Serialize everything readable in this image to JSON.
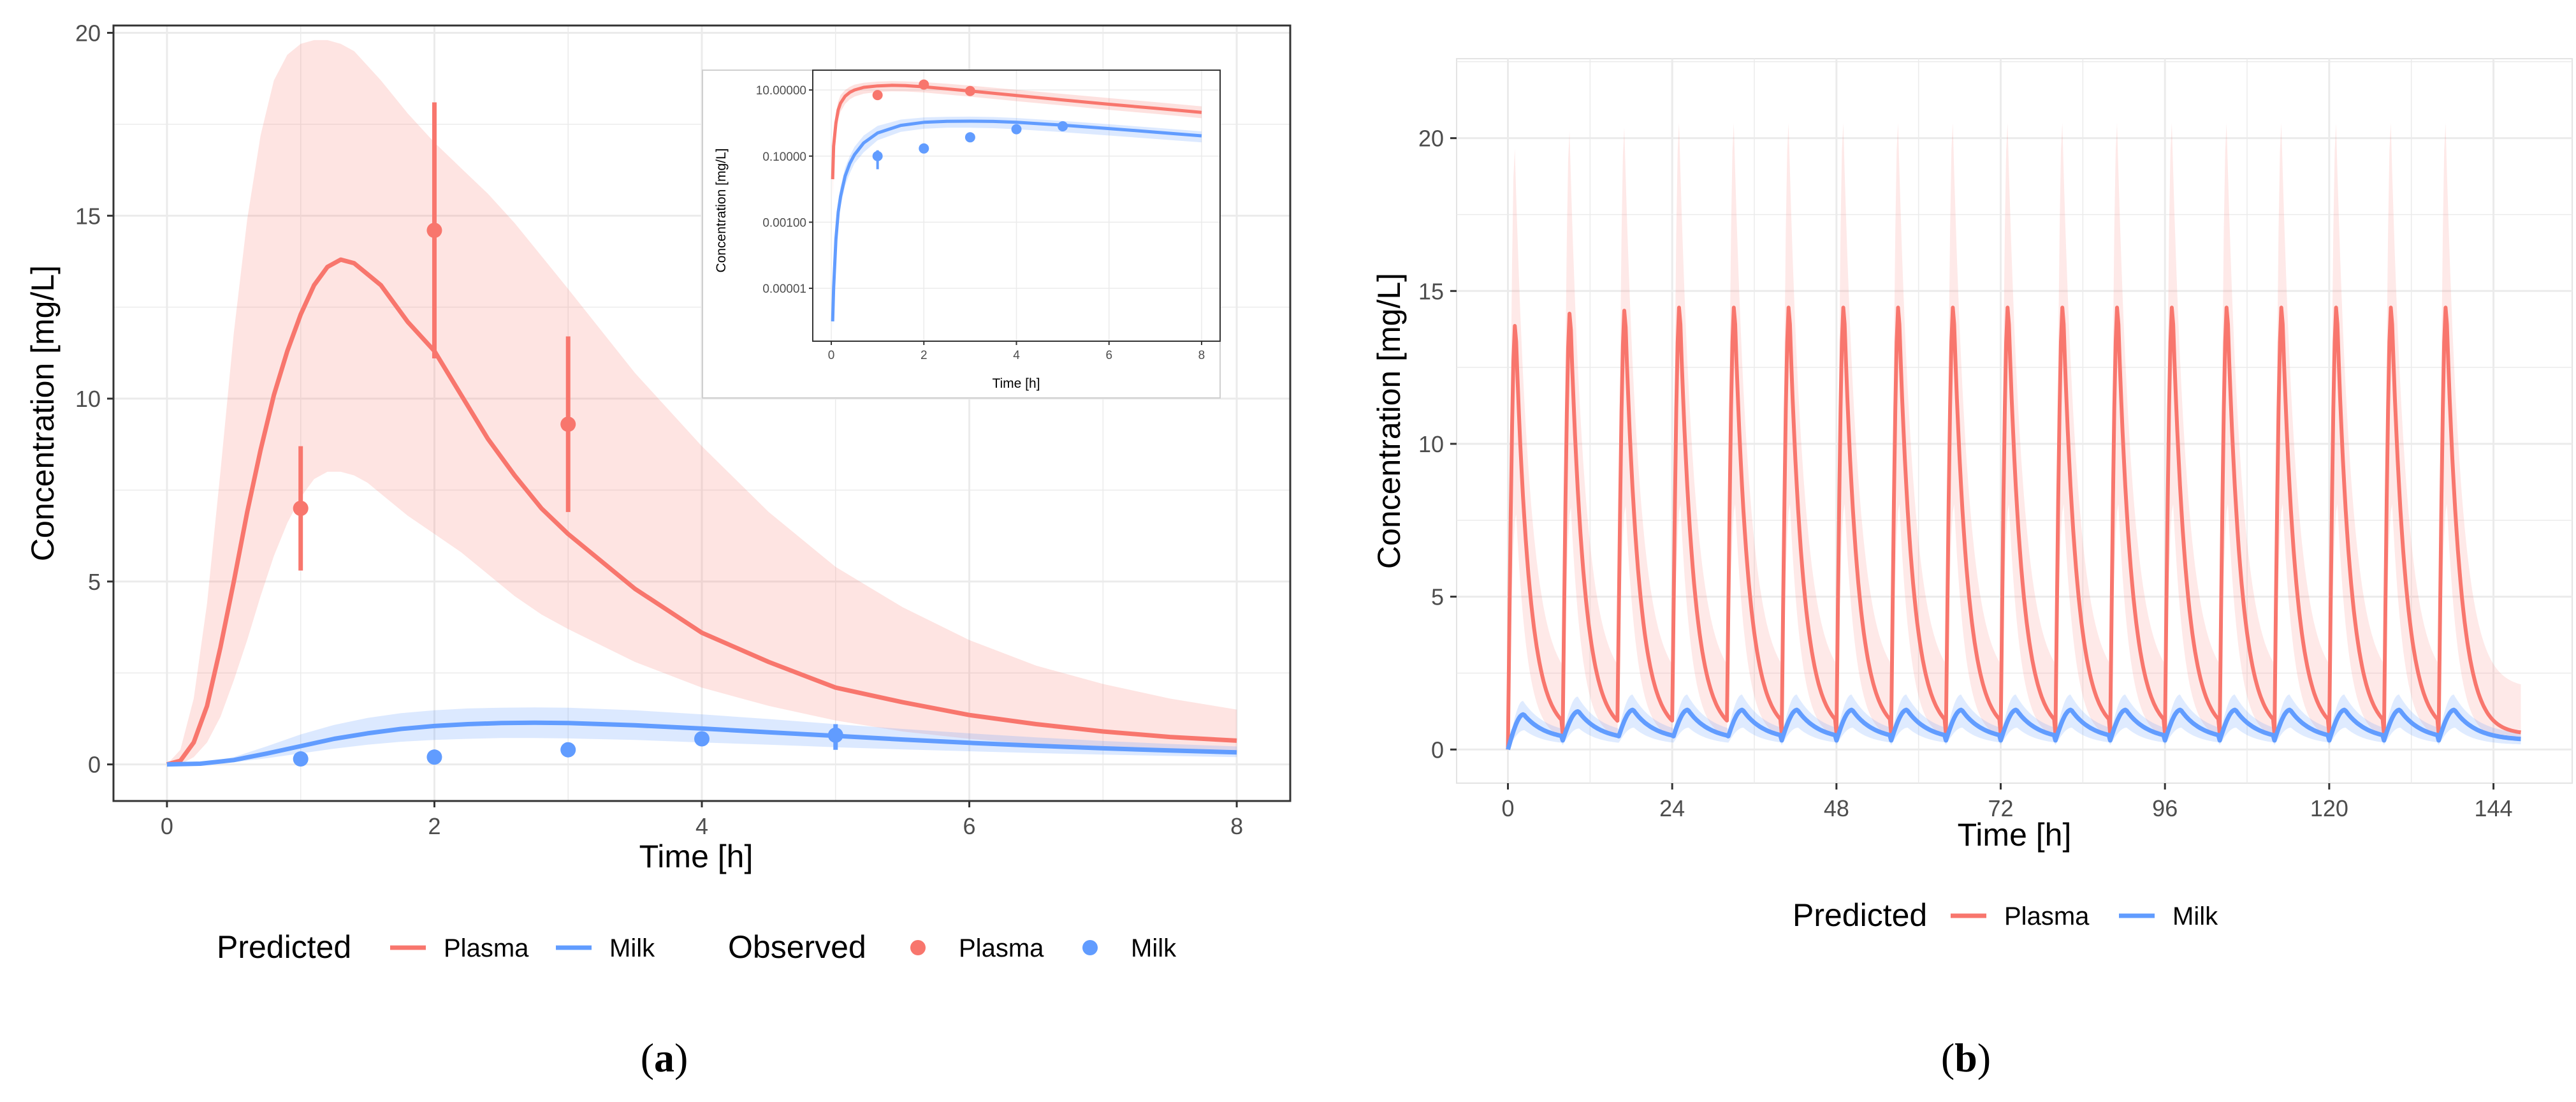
{
  "colors": {
    "plasma": "#F8766D",
    "milk": "#619CFF",
    "plasma_band": "#F8766D",
    "milk_band": "#619CFF",
    "grid": "#EBEBEB",
    "panel_border": "#333333"
  },
  "chart_data": [
    {
      "id": "a",
      "type": "line",
      "caption_open": "(",
      "caption_letter": "a",
      "caption_close": ")",
      "xlabel": "Time [h]",
      "ylabel": "Concentration [mg/L]",
      "xlim": [
        -0.4,
        8.4
      ],
      "ylim": [
        -1,
        20.2
      ],
      "x_ticks": [
        0,
        2,
        4,
        6,
        8
      ],
      "x_tick_labels": [
        "0",
        "2",
        "4",
        "6",
        "8"
      ],
      "y_ticks": [
        0,
        5,
        10,
        15,
        20
      ],
      "y_tick_labels": [
        "0",
        "5",
        "10",
        "15",
        "20"
      ],
      "grid": true,
      "series": [
        {
          "name": "Plasma",
          "kind": "predicted",
          "x": [
            0,
            0.1,
            0.2,
            0.3,
            0.4,
            0.5,
            0.6,
            0.7,
            0.8,
            0.9,
            1.0,
            1.1,
            1.2,
            1.3,
            1.4,
            1.5,
            1.6,
            1.8,
            2.0,
            2.2,
            2.4,
            2.6,
            2.8,
            3.0,
            3.5,
            4.0,
            4.5,
            5.0,
            5.5,
            6.0,
            6.5,
            7.0,
            7.5,
            8.0
          ],
          "y": [
            0,
            0.1,
            0.6,
            1.6,
            3.2,
            5.0,
            6.9,
            8.6,
            10.1,
            11.3,
            12.3,
            13.1,
            13.6,
            13.8,
            13.7,
            13.4,
            13.1,
            12.1,
            11.3,
            10.1,
            8.9,
            7.9,
            7.0,
            6.3,
            4.8,
            3.6,
            2.8,
            2.1,
            1.7,
            1.35,
            1.1,
            0.9,
            0.75,
            0.65
          ],
          "lower": [
            0,
            0,
            0.2,
            0.6,
            1.3,
            2.3,
            3.4,
            4.6,
            5.7,
            6.6,
            7.3,
            7.8,
            8.0,
            8.0,
            7.9,
            7.7,
            7.4,
            6.8,
            6.3,
            5.8,
            5.2,
            4.6,
            4.1,
            3.7,
            2.8,
            2.1,
            1.6,
            1.2,
            0.9,
            0.7,
            0.55,
            0.45,
            0.35,
            0.3
          ],
          "upper": [
            0,
            0.4,
            1.8,
            4.4,
            8.0,
            11.8,
            14.9,
            17.2,
            18.7,
            19.4,
            19.7,
            19.8,
            19.8,
            19.7,
            19.5,
            19.1,
            18.7,
            17.8,
            17.0,
            16.3,
            15.6,
            14.8,
            13.9,
            13.0,
            10.7,
            8.7,
            6.9,
            5.4,
            4.3,
            3.4,
            2.7,
            2.2,
            1.8,
            1.5
          ]
        },
        {
          "name": "Milk",
          "kind": "predicted",
          "x": [
            0,
            0.25,
            0.5,
            0.75,
            1.0,
            1.25,
            1.5,
            1.75,
            2.0,
            2.25,
            2.5,
            2.75,
            3.0,
            3.5,
            4.0,
            4.5,
            5.0,
            5.5,
            6.0,
            6.5,
            7.0,
            7.5,
            8.0
          ],
          "y": [
            0,
            0.02,
            0.12,
            0.3,
            0.5,
            0.7,
            0.85,
            0.97,
            1.05,
            1.1,
            1.13,
            1.14,
            1.13,
            1.07,
            0.98,
            0.88,
            0.78,
            0.68,
            0.59,
            0.51,
            0.44,
            0.38,
            0.33
          ],
          "lower": [
            0,
            0.01,
            0.06,
            0.17,
            0.3,
            0.43,
            0.54,
            0.62,
            0.67,
            0.7,
            0.72,
            0.72,
            0.71,
            0.67,
            0.6,
            0.54,
            0.47,
            0.41,
            0.36,
            0.31,
            0.27,
            0.23,
            0.2
          ],
          "upper": [
            0,
            0.04,
            0.2,
            0.5,
            0.82,
            1.08,
            1.27,
            1.4,
            1.48,
            1.53,
            1.55,
            1.56,
            1.55,
            1.48,
            1.37,
            1.24,
            1.1,
            0.97,
            0.85,
            0.74,
            0.64,
            0.56,
            0.49
          ]
        }
      ],
      "observed": [
        {
          "name": "Plasma",
          "x": [
            1,
            2,
            3
          ],
          "y": [
            7.0,
            14.6,
            9.3
          ],
          "err_low": [
            5.3,
            11.1,
            6.9
          ],
          "err_high": [
            8.7,
            18.1,
            11.7
          ]
        },
        {
          "name": "Milk",
          "x": [
            1,
            2,
            3,
            4,
            5
          ],
          "y": [
            0.15,
            0.2,
            0.4,
            0.7,
            0.8
          ],
          "err_low": [
            null,
            null,
            null,
            null,
            0.4
          ],
          "err_high": [
            null,
            null,
            null,
            null,
            1.1
          ]
        }
      ],
      "legend": {
        "position": "bottom",
        "predicted_title": "Predicted",
        "observed_title": "Observed",
        "predicted_items": [
          "Plasma",
          "Milk"
        ],
        "observed_items": [
          "Plasma",
          "Milk"
        ]
      },
      "inset": {
        "type": "line",
        "y_scale": "log",
        "xlabel": "Time [h]",
        "ylabel": "Concentration [mg/L]",
        "x_ticks": [
          0,
          2,
          4,
          6,
          8
        ],
        "x_tick_labels": [
          "0",
          "2",
          "4",
          "6",
          "8"
        ],
        "y_ticks": [
          1e-05,
          0.001,
          0.1,
          10
        ],
        "y_tick_labels": [
          "0.00001",
          "0.00100",
          "0.10000",
          "10.00000"
        ],
        "xlim": [
          -0.4,
          8.4
        ],
        "log_ylim": [
          -6.6,
          1.6
        ],
        "series": [
          {
            "name": "Plasma",
            "x": [
              0.03,
              0.05,
              0.1,
              0.15,
              0.2,
              0.3,
              0.4,
              0.5,
              0.7,
              1.0,
              1.3,
              1.6,
              2.0,
              2.5,
              3.0,
              4.0,
              5.0,
              6.0,
              7.0,
              8.0
            ],
            "y": [
              0.02,
              0.2,
              1.0,
              2.5,
              4.0,
              6.5,
              8.5,
              10.0,
              12.0,
              13.3,
              13.8,
              13.5,
              12.5,
              10.8,
              9.3,
              6.8,
              5.0,
              3.7,
              2.8,
              2.1
            ],
            "lower": [
              0.005,
              0.07,
              0.5,
              1.3,
              2.2,
              3.8,
              5.2,
              6.3,
              7.7,
              8.7,
              9.1,
              9.0,
              8.4,
              7.3,
              6.3,
              4.6,
              3.4,
              2.5,
              1.9,
              1.4
            ],
            "upper": [
              0.06,
              0.5,
              2.0,
              4.5,
              7.0,
              10.0,
              12.5,
              14.5,
              16.5,
              18.0,
              18.5,
              18.2,
              17.3,
              15.5,
              13.6,
              10.2,
              7.6,
              5.7,
              4.3,
              3.2
            ]
          },
          {
            "name": "Milk",
            "x": [
              0.03,
              0.05,
              0.1,
              0.15,
              0.2,
              0.3,
              0.4,
              0.5,
              0.7,
              1.0,
              1.5,
              2.0,
              2.5,
              3.0,
              3.5,
              4.0,
              5.0,
              6.0,
              7.0,
              8.0
            ],
            "y": [
              1e-06,
              1e-05,
              0.0003,
              0.002,
              0.006,
              0.025,
              0.06,
              0.11,
              0.25,
              0.5,
              0.85,
              1.05,
              1.13,
              1.14,
              1.12,
              1.05,
              0.86,
              0.68,
              0.53,
              0.41
            ],
            "lower": [
              5e-07,
              5e-06,
              0.00015,
              0.001,
              0.003,
              0.013,
              0.03,
              0.06,
              0.13,
              0.3,
              0.54,
              0.67,
              0.72,
              0.72,
              0.7,
              0.65,
              0.53,
              0.42,
              0.33,
              0.26
            ],
            "upper": [
              2e-06,
              2e-05,
              0.0006,
              0.004,
              0.012,
              0.045,
              0.1,
              0.19,
              0.42,
              0.82,
              1.27,
              1.48,
              1.55,
              1.56,
              1.52,
              1.42,
              1.16,
              0.92,
              0.72,
              0.56
            ]
          }
        ],
        "observed": [
          {
            "name": "Plasma",
            "x": [
              1,
              2,
              3
            ],
            "y": [
              7.0,
              14.6,
              9.3
            ]
          },
          {
            "name": "Milk",
            "x": [
              1,
              2,
              3,
              4,
              5
            ],
            "y": [
              0.1,
              0.17,
              0.37,
              0.65,
              0.8
            ],
            "err_low": [
              0.04,
              null,
              null,
              null,
              null
            ],
            "err_high": [
              0.15,
              null,
              null,
              null,
              null
            ]
          }
        ]
      }
    },
    {
      "id": "b",
      "type": "line",
      "caption_open": "(",
      "caption_letter": "b",
      "caption_close": ")",
      "xlabel": "Time [h]",
      "ylabel": "Concentration [mg/L]",
      "xlim": [
        -7.5,
        155.5
      ],
      "ylim": [
        -1.1,
        22.6
      ],
      "x_ticks": [
        0,
        24,
        48,
        72,
        96,
        120,
        144
      ],
      "x_tick_labels": [
        "0",
        "24",
        "48",
        "72",
        "96",
        "120",
        "144"
      ],
      "y_ticks": [
        0,
        5,
        10,
        15,
        20
      ],
      "y_tick_labels": [
        "0",
        "5",
        "10",
        "15",
        "20"
      ],
      "grid": true,
      "dosing": {
        "interval_h": 8,
        "n_doses": 18,
        "end_h": 148
      },
      "series": [
        {
          "name": "Plasma",
          "kind": "predicted",
          "peaks": [
            14.0,
            14.4,
            14.5,
            14.6,
            14.6,
            14.6,
            14.6,
            14.6,
            14.6,
            14.6,
            14.6,
            14.6,
            14.6,
            14.6,
            14.6,
            14.6,
            14.6,
            14.6
          ],
          "trough": 0.5,
          "band_peak": 20.5,
          "band_trough": 2.0
        },
        {
          "name": "Milk",
          "kind": "predicted",
          "peaks": [
            1.15,
            1.25,
            1.3,
            1.3,
            1.3,
            1.3,
            1.3,
            1.3,
            1.3,
            1.3,
            1.3,
            1.3,
            1.3,
            1.3,
            1.3,
            1.3,
            1.3,
            1.3
          ],
          "trough": 0.3,
          "band_peak": 1.8,
          "band_trough": 0.15
        }
      ],
      "legend": {
        "position": "bottom",
        "predicted_title": "Predicted",
        "predicted_items": [
          "Plasma",
          "Milk"
        ]
      }
    }
  ]
}
